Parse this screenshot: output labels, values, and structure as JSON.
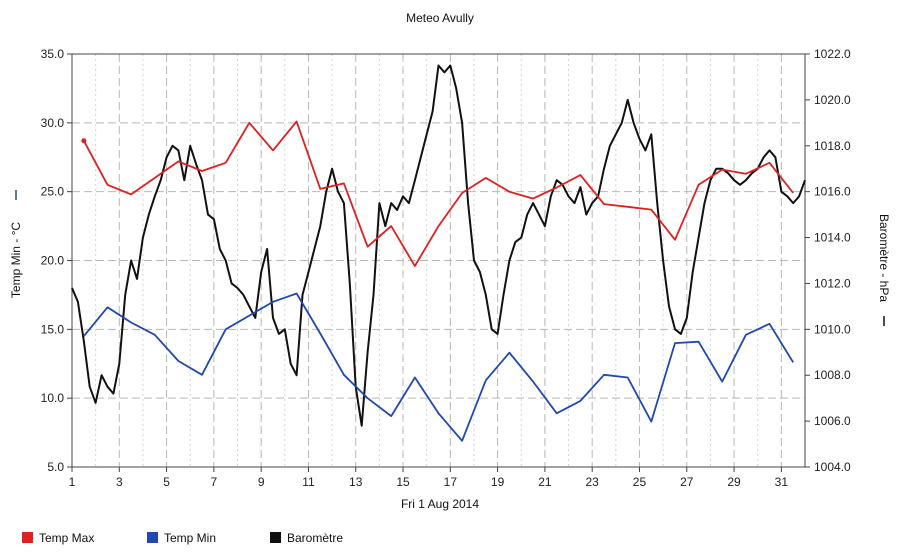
{
  "chart_data": {
    "type": "line",
    "title": "Meteo  Avully",
    "xlabel": "Fri 1 Aug 2014",
    "ylabel_left": "Temp Min - °C",
    "ylabel_right": "Baromètre - hPa",
    "xlim": [
      1,
      32
    ],
    "ylim_left": [
      5,
      35
    ],
    "ylim_right": [
      1004,
      1022
    ],
    "x_ticks": [
      1,
      3,
      5,
      7,
      9,
      11,
      13,
      15,
      17,
      19,
      21,
      23,
      25,
      27,
      29,
      31
    ],
    "y_left_ticks": [
      "5.0",
      "10.0",
      "15.0",
      "20.0",
      "25.0",
      "30.0",
      "35.0"
    ],
    "y_right_ticks": [
      "1004.0",
      "1006.0",
      "1008.0",
      "1010.0",
      "1012.0",
      "1014.0",
      "1016.0",
      "1018.0",
      "1020.0",
      "1022.0"
    ],
    "grid": true,
    "legend_position": "bottom-left",
    "colors": {
      "temp_max": "#e02020",
      "temp_min": "#1f48b0",
      "barometre": "#111111"
    },
    "series": [
      {
        "name": "Temp Max",
        "axis": "left",
        "x": [
          1.5,
          2.5,
          3.5,
          4.5,
          5.5,
          6.5,
          7.5,
          8.5,
          9.5,
          10.5,
          11.5,
          12.5,
          13.5,
          14.5,
          15.5,
          16.5,
          17.5,
          18.5,
          19.5,
          20.5,
          21.5,
          22.5,
          23.5,
          24.5,
          25.5,
          26.5,
          27.5,
          28.5,
          29.5,
          30.5,
          31.5
        ],
        "values": [
          28.7,
          25.5,
          24.8,
          26.0,
          27.2,
          26.5,
          27.1,
          30.0,
          28.0,
          30.1,
          25.2,
          25.6,
          21.0,
          22.5,
          19.6,
          22.5,
          24.9,
          26.0,
          25.0,
          24.5,
          25.3,
          26.2,
          24.1,
          23.9,
          23.7,
          21.5,
          25.5,
          26.6,
          26.3,
          27.1,
          24.9
        ]
      },
      {
        "name": "Temp Min",
        "axis": "left",
        "x": [
          1.5,
          2.5,
          3.5,
          4.5,
          5.5,
          6.5,
          7.5,
          8.5,
          9.5,
          10.5,
          11.5,
          12.5,
          13.5,
          14.5,
          15.5,
          16.5,
          17.5,
          18.5,
          19.5,
          20.5,
          21.5,
          22.5,
          23.5,
          24.5,
          25.5,
          26.5,
          27.5,
          28.5,
          29.5,
          30.5,
          31.5
        ],
        "values": [
          14.5,
          16.6,
          15.5,
          14.6,
          12.7,
          11.7,
          15.0,
          16.0,
          17.0,
          17.6,
          14.7,
          11.7,
          10.0,
          8.7,
          11.5,
          8.9,
          6.9,
          11.3,
          13.3,
          11.2,
          8.9,
          9.8,
          11.7,
          11.5,
          8.3,
          14.0,
          14.1,
          11.2,
          14.6,
          15.4,
          12.6
        ]
      },
      {
        "name": "Baromètre",
        "axis": "right",
        "x": [
          1.0,
          1.25,
          1.5,
          1.75,
          2.0,
          2.25,
          2.5,
          2.75,
          3.0,
          3.25,
          3.5,
          3.75,
          4.0,
          4.25,
          4.5,
          4.75,
          5.0,
          5.25,
          5.5,
          5.75,
          6.0,
          6.25,
          6.5,
          6.75,
          7.0,
          7.25,
          7.5,
          7.75,
          8.0,
          8.25,
          8.5,
          8.75,
          9.0,
          9.25,
          9.5,
          9.75,
          10.0,
          10.25,
          10.5,
          10.75,
          11.0,
          11.25,
          11.5,
          11.75,
          12.0,
          12.25,
          12.5,
          12.75,
          13.0,
          13.25,
          13.5,
          13.75,
          14.0,
          14.25,
          14.5,
          14.75,
          15.0,
          15.25,
          15.5,
          15.75,
          16.0,
          16.25,
          16.5,
          16.75,
          17.0,
          17.25,
          17.5,
          17.75,
          18.0,
          18.25,
          18.5,
          18.75,
          19.0,
          19.25,
          19.5,
          19.75,
          20.0,
          20.25,
          20.5,
          20.75,
          21.0,
          21.25,
          21.5,
          21.75,
          22.0,
          22.25,
          22.5,
          22.75,
          23.0,
          23.25,
          23.5,
          23.75,
          24.0,
          24.25,
          24.5,
          24.75,
          25.0,
          25.25,
          25.5,
          25.75,
          26.0,
          26.25,
          26.5,
          26.75,
          27.0,
          27.25,
          27.5,
          27.75,
          28.0,
          28.25,
          28.5,
          28.75,
          29.0,
          29.25,
          29.5,
          29.75,
          30.0,
          30.25,
          30.5,
          30.75,
          31.0,
          31.25,
          31.5,
          31.75,
          32.0
        ],
        "values": [
          1011.8,
          1011.2,
          1009.5,
          1007.5,
          1006.8,
          1008.0,
          1007.5,
          1007.2,
          1008.5,
          1011.5,
          1013.0,
          1012.2,
          1014.0,
          1015.0,
          1015.8,
          1016.5,
          1017.5,
          1018.0,
          1017.8,
          1016.5,
          1018.0,
          1017.2,
          1016.5,
          1015.0,
          1014.8,
          1013.5,
          1013.0,
          1012.0,
          1011.8,
          1011.5,
          1011.0,
          1010.5,
          1012.5,
          1013.5,
          1010.5,
          1009.8,
          1010.0,
          1008.5,
          1008.0,
          1011.5,
          1012.5,
          1013.5,
          1014.5,
          1016.0,
          1017.0,
          1016.0,
          1015.5,
          1012.0,
          1007.5,
          1005.8,
          1009.0,
          1011.5,
          1015.5,
          1014.5,
          1015.5,
          1015.2,
          1015.8,
          1015.5,
          1016.5,
          1017.5,
          1018.5,
          1019.5,
          1021.5,
          1021.2,
          1021.5,
          1020.5,
          1019.0,
          1015.5,
          1013.0,
          1012.5,
          1011.5,
          1010.0,
          1009.8,
          1011.5,
          1013.0,
          1013.8,
          1014.0,
          1015.0,
          1015.5,
          1015.0,
          1014.5,
          1015.8,
          1016.5,
          1016.3,
          1015.8,
          1015.5,
          1016.2,
          1015.0,
          1015.5,
          1015.8,
          1017.0,
          1018.0,
          1018.5,
          1019.0,
          1020.0,
          1019.0,
          1018.3,
          1017.8,
          1018.5,
          1015.5,
          1013.0,
          1011.0,
          1010.0,
          1009.8,
          1010.5,
          1012.5,
          1014.0,
          1015.5,
          1016.5,
          1017.0,
          1017.0,
          1016.8,
          1016.5,
          1016.3,
          1016.5,
          1016.8,
          1017.0,
          1017.5,
          1017.8,
          1017.5,
          1016.0,
          1015.8,
          1015.5,
          1015.8,
          1016.5
        ]
      }
    ]
  }
}
